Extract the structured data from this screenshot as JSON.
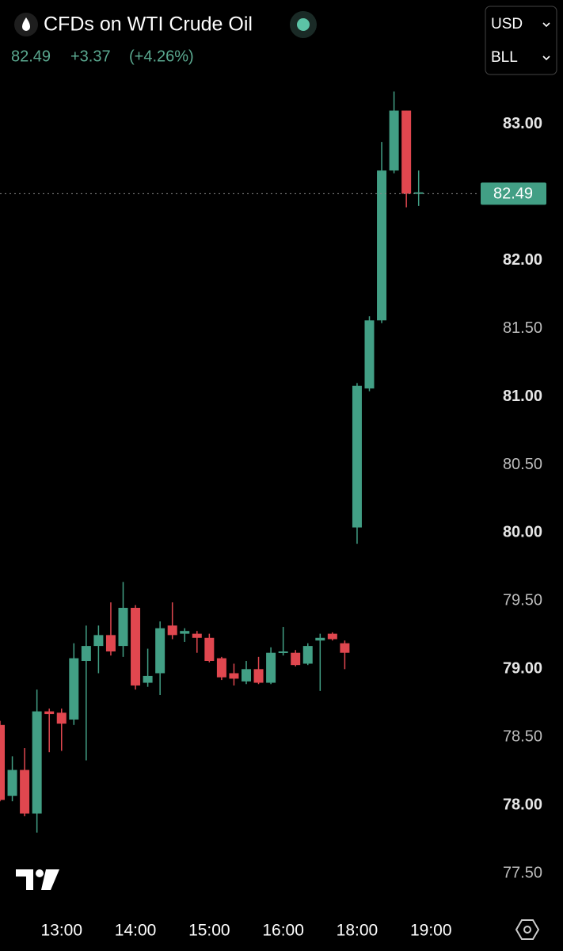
{
  "header": {
    "symbol": "CFDs on WTI Crude Oil",
    "price": "82.49",
    "change": "+3.37",
    "change_pct": "(+4.26%)",
    "currency": "USD",
    "unit": "BLL"
  },
  "chart_data": {
    "type": "candlestick",
    "categories": [
      null,
      null,
      null,
      null,
      null,
      "13:00",
      null,
      null,
      null,
      null,
      null,
      "14:00",
      null,
      null,
      null,
      null,
      null,
      "15:00",
      null,
      null,
      null,
      null,
      null,
      "16:00",
      null,
      null,
      null,
      null,
      null,
      "18:00",
      null,
      null,
      null,
      null,
      null,
      "19:00"
    ],
    "open": [
      78.59,
      78.07,
      78.26,
      77.94,
      78.69,
      78.68,
      78.63,
      79.06,
      79.17,
      79.25,
      79.17,
      79.45,
      78.9,
      78.97,
      79.32,
      79.26,
      79.26,
      79.23,
      79.08,
      78.97,
      78.91,
      79.0,
      78.9,
      79.12,
      79.12,
      79.04,
      79.21,
      79.26,
      79.19,
      80.04,
      81.06,
      81.56,
      82.66,
      83.1,
      82.49,
      null
    ],
    "high": [
      78.62,
      78.36,
      78.42,
      78.85,
      78.71,
      78.71,
      79.19,
      79.32,
      79.32,
      79.49,
      79.64,
      79.47,
      79.15,
      79.35,
      79.49,
      79.3,
      79.28,
      79.26,
      79.09,
      79.04,
      79.06,
      79.09,
      79.16,
      79.31,
      79.14,
      79.19,
      79.26,
      79.27,
      79.21,
      81.1,
      81.59,
      82.87,
      83.24,
      83.1,
      82.66,
      null
    ],
    "low": [
      78.03,
      78.03,
      77.92,
      77.8,
      78.39,
      78.4,
      78.59,
      78.33,
      78.97,
      79.1,
      79.09,
      78.85,
      78.87,
      78.81,
      79.22,
      79.2,
      79.12,
      79.05,
      78.92,
      78.88,
      78.89,
      78.89,
      78.89,
      79.1,
      79.02,
      79.03,
      78.84,
      79.21,
      79.0,
      79.92,
      81.04,
      81.54,
      82.64,
      82.39,
      82.4,
      null
    ],
    "close": [
      78.04,
      78.26,
      77.94,
      78.69,
      78.67,
      78.6,
      79.08,
      79.17,
      79.25,
      79.13,
      79.45,
      78.88,
      78.95,
      79.3,
      79.25,
      79.28,
      79.23,
      79.06,
      78.94,
      78.93,
      79.0,
      78.9,
      79.12,
      79.13,
      79.03,
      79.17,
      79.23,
      79.22,
      79.12,
      81.08,
      81.56,
      82.66,
      83.1,
      82.49,
      82.5,
      null
    ],
    "up_color": "#429f85",
    "down_color": "#e0474f",
    "last_price": 82.49,
    "ylim": [
      77.28,
      83.33
    ],
    "yticks": [
      {
        "value": 77.5,
        "label": "77.50"
      },
      {
        "value": 78,
        "label": "78.00"
      },
      {
        "value": 78.5,
        "label": "78.50"
      },
      {
        "value": 79,
        "label": "79.00"
      },
      {
        "value": 79.5,
        "label": "79.50"
      },
      {
        "value": 80,
        "label": "80.00"
      },
      {
        "value": 80.5,
        "label": "80.50"
      },
      {
        "value": 81,
        "label": "81.00"
      },
      {
        "value": 81.5,
        "label": "81.50"
      },
      {
        "value": 82,
        "label": "82.00"
      },
      {
        "value": 83,
        "label": "83.00"
      }
    ]
  }
}
